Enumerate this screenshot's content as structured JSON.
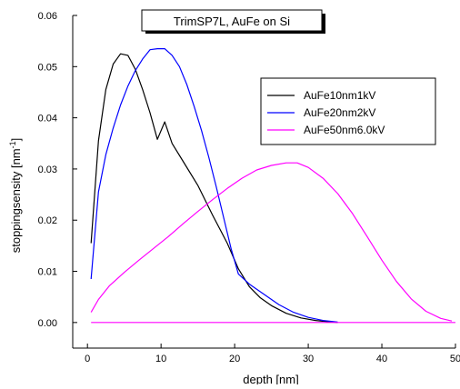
{
  "chart_data": {
    "type": "line",
    "title": "TrimSP7L, AuFe on Si",
    "xlabel": "depth [nm]",
    "ylabel": "stoppingsensity [nm",
    "ylabel_superscript": "-1",
    "ylabel_close": "]",
    "xlim": [
      -2,
      50
    ],
    "ylim": [
      -0.005,
      0.06
    ],
    "xticks": [
      0,
      10,
      20,
      30,
      40,
      50
    ],
    "yticks": [
      0.0,
      0.01,
      0.02,
      0.03,
      0.04,
      0.05,
      0.06
    ],
    "xtick_labels": [
      "0",
      "10",
      "20",
      "30",
      "40",
      "50"
    ],
    "ytick_labels": [
      "0.00",
      "0.01",
      "0.02",
      "0.03",
      "0.04",
      "0.05",
      "0.06"
    ],
    "grid": false,
    "legend_position": "top-right",
    "series": [
      {
        "name": "AuFe10nm1kV",
        "color": "#000000",
        "points": [
          [
            0.5,
            0.0155
          ],
          [
            1.5,
            0.0355
          ],
          [
            2.5,
            0.0455
          ],
          [
            3.5,
            0.0505
          ],
          [
            4.5,
            0.0525
          ],
          [
            5.5,
            0.0522
          ],
          [
            6.5,
            0.0495
          ],
          [
            7.5,
            0.0455
          ],
          [
            8.5,
            0.041
          ],
          [
            9.5,
            0.0358
          ],
          [
            10.5,
            0.0392
          ],
          [
            11.5,
            0.035
          ],
          [
            13,
            0.0315
          ],
          [
            15,
            0.0268
          ],
          [
            17,
            0.021
          ],
          [
            19,
            0.0155
          ],
          [
            20.5,
            0.0105
          ],
          [
            22,
            0.007
          ],
          [
            23.5,
            0.0048
          ],
          [
            25,
            0.0033
          ],
          [
            27,
            0.0018
          ],
          [
            29,
            0.0009
          ],
          [
            31,
            0.0004
          ],
          [
            33,
            0.0001
          ],
          [
            34,
            0.0
          ]
        ]
      },
      {
        "name": "AuFe20nm2kV",
        "color": "#0000ff",
        "points": [
          [
            0.5,
            0.0085
          ],
          [
            1.5,
            0.0255
          ],
          [
            2.5,
            0.0328
          ],
          [
            3.5,
            0.038
          ],
          [
            4.5,
            0.0425
          ],
          [
            5.5,
            0.0462
          ],
          [
            6.5,
            0.0492
          ],
          [
            7.5,
            0.0515
          ],
          [
            8.5,
            0.0533
          ],
          [
            9.5,
            0.0535
          ],
          [
            10.5,
            0.0535
          ],
          [
            11.5,
            0.0522
          ],
          [
            12.5,
            0.05
          ],
          [
            13.5,
            0.0465
          ],
          [
            14.5,
            0.0422
          ],
          [
            15.5,
            0.0375
          ],
          [
            16.5,
            0.0322
          ],
          [
            17.5,
            0.0265
          ],
          [
            18.5,
            0.0205
          ],
          [
            19.5,
            0.0145
          ],
          [
            20.5,
            0.0095
          ],
          [
            22,
            0.0075
          ],
          [
            24,
            0.0055
          ],
          [
            26,
            0.0035
          ],
          [
            28,
            0.002
          ],
          [
            30,
            0.001
          ],
          [
            32,
            0.0004
          ],
          [
            34,
            0.0001
          ]
        ]
      },
      {
        "name": "AuFe50nm6.0kV",
        "color": "#ff00ff",
        "points": [
          [
            0.5,
            0.002
          ],
          [
            1.5,
            0.0045
          ],
          [
            3,
            0.0072
          ],
          [
            5,
            0.0098
          ],
          [
            7,
            0.0122
          ],
          [
            9,
            0.0145
          ],
          [
            11,
            0.0168
          ],
          [
            13,
            0.0193
          ],
          [
            15,
            0.0217
          ],
          [
            17,
            0.024
          ],
          [
            19,
            0.0262
          ],
          [
            21,
            0.0282
          ],
          [
            23,
            0.0298
          ],
          [
            25,
            0.0307
          ],
          [
            27,
            0.0312
          ],
          [
            28.5,
            0.0312
          ],
          [
            30,
            0.0303
          ],
          [
            32,
            0.0282
          ],
          [
            34,
            0.0252
          ],
          [
            36,
            0.0213
          ],
          [
            38,
            0.0168
          ],
          [
            40,
            0.0122
          ],
          [
            42,
            0.008
          ],
          [
            44,
            0.0046
          ],
          [
            46,
            0.0022
          ],
          [
            48,
            0.0008
          ],
          [
            49.5,
            0.0003
          ]
        ]
      },
      {
        "name": "",
        "color": "#ff00ff",
        "points": [
          [
            0.5,
            0.0
          ],
          [
            50,
            0.0
          ]
        ]
      }
    ]
  }
}
